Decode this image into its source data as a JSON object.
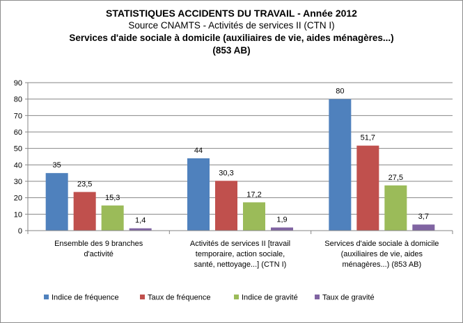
{
  "chart_data": {
    "type": "bar",
    "title": "STATISTIQUES ACCIDENTS DU TRAVAIL - Année 2012",
    "subtitle": "Source  CNAMTS - Activités de services II (CTN I)",
    "subtitle2_line1": "Services d'aide sociale à domicile (auxiliaires de vie, aides ménagères...)",
    "subtitle2_line2": "(853 AB)",
    "categories": [
      [
        "Ensemble des 9 branches",
        "d'activité"
      ],
      [
        "Activités de services II [travail",
        "temporaire, action sociale,",
        "santé, nettoyage...]  (CTN  I)"
      ],
      [
        "Services d'aide sociale à domicile",
        "(auxiliaires de vie, aides",
        "ménagères...)  (853 AB)"
      ]
    ],
    "series": [
      {
        "name": "Indice de fréquence",
        "color": "#4f81bd",
        "values": [
          35,
          44,
          80
        ],
        "labels": [
          "35",
          "44",
          "80"
        ]
      },
      {
        "name": "Taux de fréquence",
        "color": "#c0504d",
        "values": [
          23.5,
          30.3,
          51.7
        ],
        "labels": [
          "23,5",
          "30,3",
          "51,7"
        ]
      },
      {
        "name": "Indice de gravité",
        "color": "#9bbb59",
        "values": [
          15.3,
          17.2,
          27.5
        ],
        "labels": [
          "15,3",
          "17,2",
          "27,5"
        ]
      },
      {
        "name": "Taux de gravité",
        "color": "#8064a2",
        "values": [
          1.4,
          1.9,
          3.7
        ],
        "labels": [
          "1,4",
          "1,9",
          "3,7"
        ]
      }
    ],
    "ylim": [
      0,
      90
    ],
    "yticks": [
      "0",
      "10",
      "20",
      "30",
      "40",
      "50",
      "60",
      "70",
      "80",
      "90"
    ],
    "grid": true,
    "legend_position": "bottom"
  }
}
